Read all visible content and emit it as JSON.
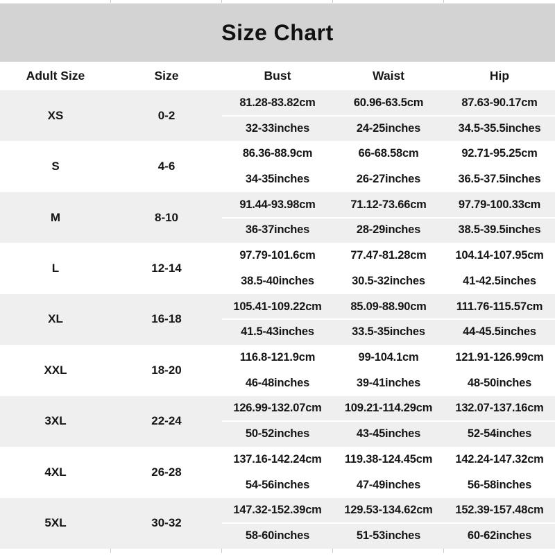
{
  "title": "Size Chart",
  "columns": {
    "adult_size": "Adult Size",
    "size": "Size",
    "bust": "Bust",
    "waist": "Waist",
    "hip": "Hip"
  },
  "rows": [
    {
      "adult_size": "XS",
      "size": "0-2",
      "bust_cm": "81.28-83.82cm",
      "bust_in": "32-33inches",
      "waist_cm": "60.96-63.5cm",
      "waist_in": "24-25inches",
      "hip_cm": "87.63-90.17cm",
      "hip_in": "34.5-35.5inches"
    },
    {
      "adult_size": "S",
      "size": "4-6",
      "bust_cm": "86.36-88.9cm",
      "bust_in": "34-35inches",
      "waist_cm": "66-68.58cm",
      "waist_in": "26-27inches",
      "hip_cm": "92.71-95.25cm",
      "hip_in": "36.5-37.5inches"
    },
    {
      "adult_size": "M",
      "size": "8-10",
      "bust_cm": "91.44-93.98cm",
      "bust_in": "36-37inches",
      "waist_cm": "71.12-73.66cm",
      "waist_in": "28-29inches",
      "hip_cm": "97.79-100.33cm",
      "hip_in": "38.5-39.5inches"
    },
    {
      "adult_size": "L",
      "size": "12-14",
      "bust_cm": "97.79-101.6cm",
      "bust_in": "38.5-40inches",
      "waist_cm": "77.47-81.28cm",
      "waist_in": "30.5-32inches",
      "hip_cm": "104.14-107.95cm",
      "hip_in": "41-42.5inches"
    },
    {
      "adult_size": "XL",
      "size": "16-18",
      "bust_cm": "105.41-109.22cm",
      "bust_in": "41.5-43inches",
      "waist_cm": "85.09-88.90cm",
      "waist_in": "33.5-35inches",
      "hip_cm": "111.76-115.57cm",
      "hip_in": "44-45.5inches"
    },
    {
      "adult_size": "XXL",
      "size": "18-20",
      "bust_cm": "116.8-121.9cm",
      "bust_in": "46-48inches",
      "waist_cm": "99-104.1cm",
      "waist_in": "39-41inches",
      "hip_cm": "121.91-126.99cm",
      "hip_in": "48-50inches"
    },
    {
      "adult_size": "3XL",
      "size": "22-24",
      "bust_cm": "126.99-132.07cm",
      "bust_in": "50-52inches",
      "waist_cm": "109.21-114.29cm",
      "waist_in": "43-45inches",
      "hip_cm": "132.07-137.16cm",
      "hip_in": "52-54inches"
    },
    {
      "adult_size": "4XL",
      "size": "26-28",
      "bust_cm": "137.16-142.24cm",
      "bust_in": "54-56inches",
      "waist_cm": "119.38-124.45cm",
      "waist_in": "47-49inches",
      "hip_cm": "142.24-147.32cm",
      "hip_in": "56-58inches"
    },
    {
      "adult_size": "5XL",
      "size": "30-32",
      "bust_cm": "147.32-152.39cm",
      "bust_in": "58-60inches",
      "waist_cm": "129.53-134.62cm",
      "waist_in": "51-53inches",
      "hip_cm": "152.39-157.48cm",
      "hip_in": "60-62inches"
    }
  ],
  "colors": {
    "title_band": "#d3d3d3",
    "row_shaded": "#efefef",
    "row_plain": "#ffffff",
    "text": "#151515",
    "tick": "#c9c9c9"
  }
}
